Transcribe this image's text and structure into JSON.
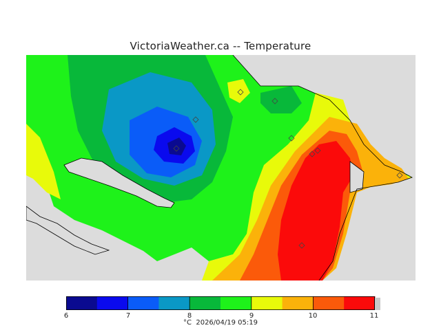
{
  "title": "VictoriaWeather.ca -- Temperature",
  "legend": {
    "unit": "°C",
    "timestamp": "2026/04/19 05:19",
    "min": 6,
    "max": 11,
    "ticks": [
      "6",
      "7",
      "8",
      "9",
      "10",
      "11"
    ],
    "colors": [
      "#0a0a90",
      "#0a0aee",
      "#0a5cf8",
      "#0a98c6",
      "#08b83a",
      "#1ef21a",
      "#e8fa0a",
      "#fbb20a",
      "#fb5a0a",
      "#fb0a0a"
    ]
  },
  "map": {
    "background_color": "#dcdcdc",
    "station_marker": "diamond",
    "station_count": 9
  }
}
